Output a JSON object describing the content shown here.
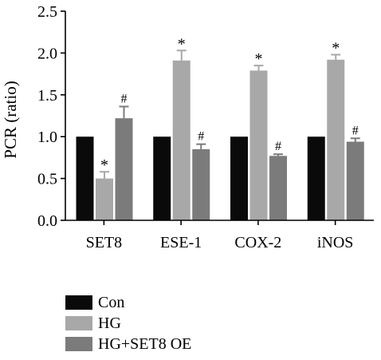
{
  "chart_data": {
    "type": "bar",
    "ylabel": "PCR (ratio)",
    "xlabel": "",
    "ylim": [
      0,
      2.5
    ],
    "yticks": [
      "0.0",
      "0.5",
      "1.0",
      "1.5",
      "2.0",
      "2.5"
    ],
    "categories": [
      "SET8",
      "ESE-1",
      "COX-2",
      "iNOS"
    ],
    "series": [
      {
        "name": "Con",
        "color": "#0a0a0a",
        "values": [
          1.0,
          1.0,
          1.0,
          1.0
        ],
        "errors": [
          0,
          0,
          0,
          0
        ],
        "marks": [
          "",
          "",
          "",
          ""
        ]
      },
      {
        "name": "HG",
        "color": "#a8a8a8",
        "values": [
          0.5,
          1.91,
          1.79,
          1.92
        ],
        "errors": [
          0.08,
          0.12,
          0.06,
          0.06
        ],
        "marks": [
          "*",
          "*",
          "*",
          "*"
        ]
      },
      {
        "name": "HG+SET8 OE",
        "color": "#7b7b7b",
        "values": [
          1.22,
          0.85,
          0.77,
          0.94
        ],
        "errors": [
          0.14,
          0.06,
          0.02,
          0.04
        ],
        "marks": [
          "#",
          "#",
          "#",
          "#"
        ]
      }
    ],
    "legend_position": "bottom-left",
    "grid": false
  }
}
